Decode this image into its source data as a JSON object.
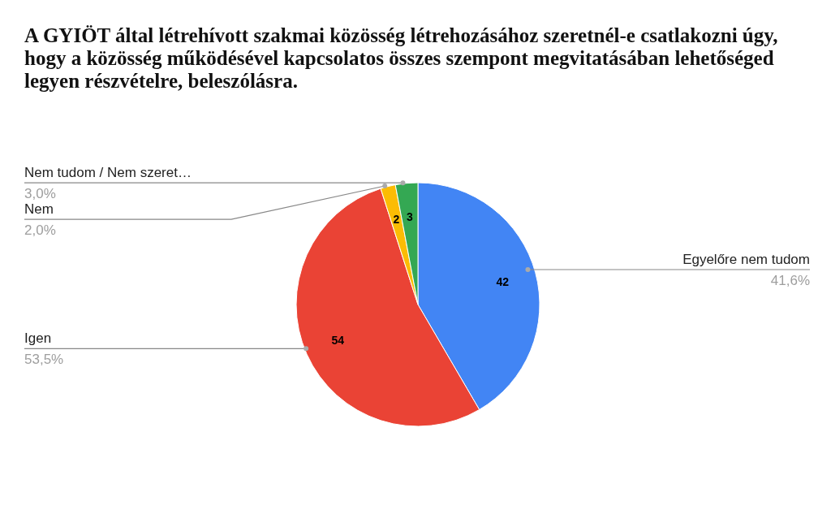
{
  "chart_data": {
    "type": "pie",
    "title": "A GYIÖT által létrehívott szakmai közösség létrehozásához szeretnél-e csatlakozni úgy, hogy a közösség működésével kapcsolatos összes szempont megvitatásában lehetőséged legyen részvételre, beleszólásra.",
    "categories": [
      "Egyelőre nem tudom",
      "Igen",
      "Nem",
      "Nem tudom / Nem szeret…"
    ],
    "values": [
      42,
      54,
      2,
      3
    ],
    "colors": [
      "#4285f4",
      "#ea4335",
      "#fbbc04",
      "#34a853"
    ],
    "annotations": [
      "41,6%",
      "53,5%",
      "2,0%",
      "3,0%"
    ],
    "data_labels": true
  }
}
